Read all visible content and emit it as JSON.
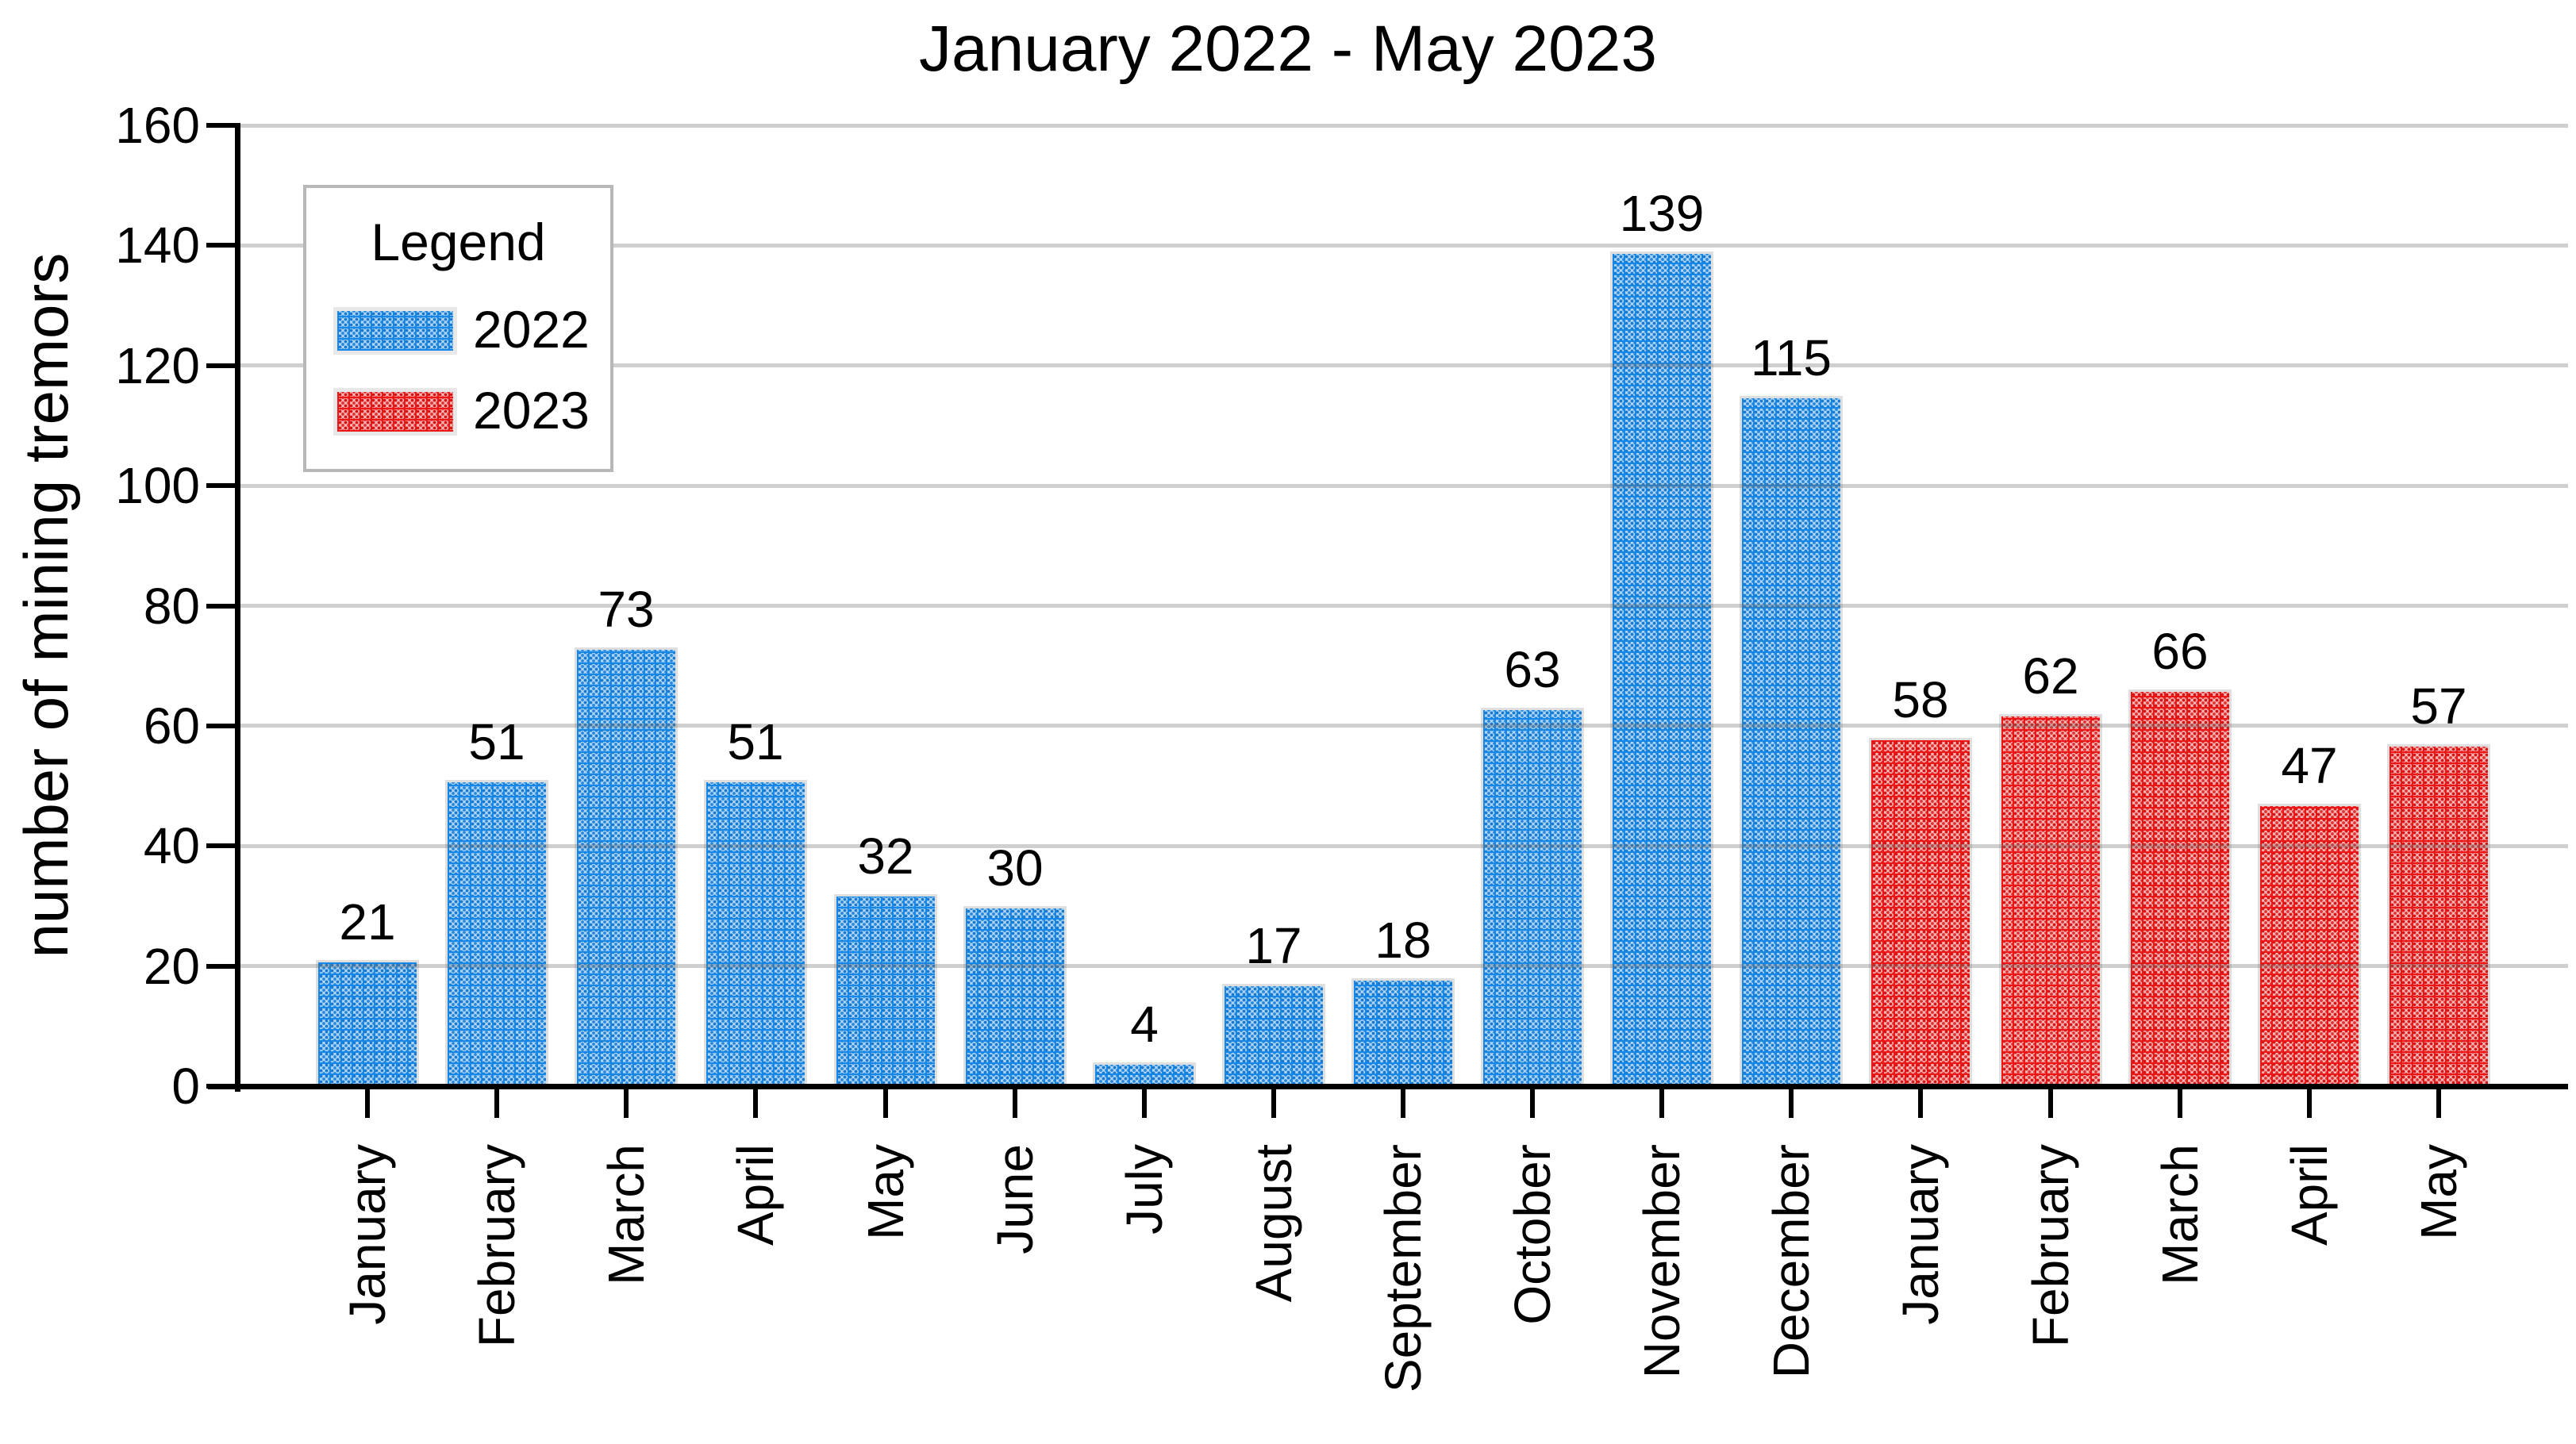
{
  "chart_data": {
    "type": "bar",
    "title": "January 2022 - May 2023",
    "xlabel": "",
    "ylabel": "number of mining tremors",
    "ylim": [
      0,
      160
    ],
    "ytick_step": 20,
    "yticks": [
      0,
      20,
      40,
      60,
      80,
      100,
      120,
      140,
      160
    ],
    "grid": "horizontal",
    "legend": {
      "title": "Legend",
      "position": "upper-left-inside",
      "entries": [
        "2022",
        "2023"
      ]
    },
    "categories": [
      "January",
      "February",
      "March",
      "April",
      "May",
      "June",
      "July",
      "August",
      "September",
      "October",
      "November",
      "December",
      "January",
      "February",
      "March",
      "April",
      "May"
    ],
    "series": [
      {
        "name": "2022",
        "overall_color": "#55a9e8",
        "pattern": "dotted-grid",
        "values": [
          21,
          51,
          73,
          51,
          32,
          30,
          4,
          17,
          18,
          63,
          139,
          115,
          null,
          null,
          null,
          null,
          null
        ]
      },
      {
        "name": "2023",
        "overall_color": "#ee5b5b",
        "pattern": "dotted-grid",
        "values": [
          null,
          null,
          null,
          null,
          null,
          null,
          null,
          null,
          null,
          null,
          null,
          null,
          58,
          62,
          66,
          47,
          57
        ]
      }
    ],
    "bar_value_labels": [
      21,
      51,
      73,
      51,
      32,
      30,
      4,
      17,
      18,
      63,
      139,
      115,
      58,
      62,
      66,
      47,
      57
    ]
  },
  "colors": {
    "bar_2022_base": "#aed7f7",
    "bar_2022_dot": "#1a78cc",
    "bar_2022_overall": "#55a9e8",
    "bar_2023_base": "#f8b6b6",
    "bar_2023_dot": "#d41414",
    "bar_2023_overall": "#ee5b5b",
    "bar_border": "#dfdfdf",
    "gridline": "#cecece",
    "axis": "#000000",
    "legend_border": "#b8b8b8",
    "text": "#000000",
    "background": "#ffffff"
  }
}
